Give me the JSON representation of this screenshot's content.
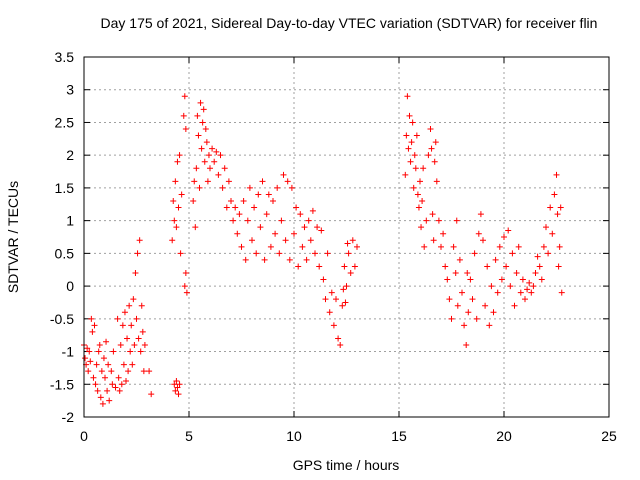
{
  "chart_data": {
    "type": "scatter",
    "title": "Day 175 of 2021, Sidereal Day-to-day VTEC variation (SDTVAR) for receiver flin",
    "xlabel": "GPS time / hours",
    "ylabel": "SDTVAR / TECUs",
    "xlim": [
      0,
      25
    ],
    "ylim": [
      -2,
      3.5
    ],
    "xticks": [
      0,
      5,
      10,
      15,
      20,
      25
    ],
    "yticks": [
      -2,
      -1.5,
      -1,
      -0.5,
      0,
      0.5,
      1,
      1.5,
      2,
      2.5,
      3,
      3.5
    ],
    "grid": true,
    "marker": "+",
    "series": [
      {
        "name": "SDTVAR",
        "color": "#ff0000",
        "points": [
          [
            0.0,
            -0.9
          ],
          [
            0.05,
            -1.1
          ],
          [
            0.1,
            -1.2
          ],
          [
            0.15,
            -0.95
          ],
          [
            0.2,
            -1.3
          ],
          [
            0.25,
            -1.0
          ],
          [
            0.3,
            -1.15
          ],
          [
            0.35,
            -0.5
          ],
          [
            0.4,
            -0.7
          ],
          [
            0.45,
            -1.4
          ],
          [
            0.5,
            -0.6
          ],
          [
            0.55,
            -1.5
          ],
          [
            0.6,
            -1.2
          ],
          [
            0.65,
            -1.6
          ],
          [
            0.7,
            -1.0
          ],
          [
            0.75,
            -0.9
          ],
          [
            0.8,
            -1.7
          ],
          [
            0.85,
            -1.3
          ],
          [
            0.9,
            -1.8
          ],
          [
            0.95,
            -1.1
          ],
          [
            1.0,
            -1.4
          ],
          [
            1.05,
            -0.85
          ],
          [
            1.1,
            -1.6
          ],
          [
            1.15,
            -1.2
          ],
          [
            1.2,
            -1.75
          ],
          [
            1.3,
            -1.3
          ],
          [
            1.35,
            -1.5
          ],
          [
            1.4,
            -1.0
          ],
          [
            1.5,
            -1.55
          ],
          [
            1.6,
            -0.5
          ],
          [
            1.65,
            -1.4
          ],
          [
            1.7,
            -1.6
          ],
          [
            1.75,
            -0.9
          ],
          [
            1.8,
            -1.5
          ],
          [
            1.85,
            -0.6
          ],
          [
            1.9,
            -1.2
          ],
          [
            1.95,
            -0.4
          ],
          [
            2.0,
            -1.45
          ],
          [
            2.05,
            -0.8
          ],
          [
            2.1,
            -1.3
          ],
          [
            2.15,
            -0.3
          ],
          [
            2.2,
            -1.0
          ],
          [
            2.25,
            -0.6
          ],
          [
            2.3,
            -1.2
          ],
          [
            2.35,
            -0.2
          ],
          [
            2.4,
            -0.9
          ],
          [
            2.45,
            0.2
          ],
          [
            2.5,
            -0.5
          ],
          [
            2.55,
            0.5
          ],
          [
            2.6,
            -0.8
          ],
          [
            2.65,
            0.7
          ],
          [
            2.7,
            -1.0
          ],
          [
            2.75,
            -0.3
          ],
          [
            2.8,
            -0.7
          ],
          [
            2.85,
            -1.3
          ],
          [
            2.9,
            -0.9
          ],
          [
            3.1,
            -1.3
          ],
          [
            3.2,
            -1.65
          ],
          [
            4.2,
            0.7
          ],
          [
            4.25,
            1.3
          ],
          [
            4.3,
            1.0
          ],
          [
            4.35,
            1.6
          ],
          [
            4.4,
            0.9
          ],
          [
            4.45,
            1.9
          ],
          [
            4.5,
            1.2
          ],
          [
            4.55,
            2.0
          ],
          [
            4.6,
            0.5
          ],
          [
            4.65,
            1.4
          ],
          [
            4.3,
            -1.5
          ],
          [
            4.35,
            -1.6
          ],
          [
            4.4,
            -1.45
          ],
          [
            4.45,
            -1.55
          ],
          [
            4.5,
            -1.65
          ],
          [
            4.55,
            -1.5
          ],
          [
            4.8,
            0.0
          ],
          [
            4.85,
            0.2
          ],
          [
            4.9,
            -0.1
          ],
          [
            4.75,
            2.6
          ],
          [
            4.8,
            2.9
          ],
          [
            4.85,
            2.4
          ],
          [
            5.2,
            1.3
          ],
          [
            5.25,
            1.6
          ],
          [
            5.3,
            0.9
          ],
          [
            5.35,
            1.8
          ],
          [
            5.4,
            2.6
          ],
          [
            5.45,
            2.3
          ],
          [
            5.5,
            1.5
          ],
          [
            5.55,
            2.8
          ],
          [
            5.6,
            2.1
          ],
          [
            5.65,
            2.5
          ],
          [
            5.7,
            2.7
          ],
          [
            5.75,
            1.9
          ],
          [
            5.8,
            2.4
          ],
          [
            5.85,
            2.2
          ],
          [
            5.9,
            1.6
          ],
          [
            5.95,
            2.0
          ],
          [
            6.0,
            1.8
          ],
          [
            6.1,
            2.1
          ],
          [
            6.2,
            1.9
          ],
          [
            6.3,
            2.05
          ],
          [
            6.4,
            1.7
          ],
          [
            6.5,
            2.0
          ],
          [
            6.6,
            1.5
          ],
          [
            6.7,
            1.8
          ],
          [
            6.8,
            1.2
          ],
          [
            6.9,
            1.6
          ],
          [
            7.0,
            1.3
          ],
          [
            7.1,
            1.0
          ],
          [
            7.2,
            1.2
          ],
          [
            7.3,
            0.8
          ],
          [
            7.4,
            1.1
          ],
          [
            7.5,
            0.6
          ],
          [
            7.6,
            1.3
          ],
          [
            7.7,
            0.4
          ],
          [
            7.8,
            1.0
          ],
          [
            7.9,
            1.5
          ],
          [
            8.0,
            0.7
          ],
          [
            8.1,
            1.2
          ],
          [
            8.2,
            0.5
          ],
          [
            8.3,
            1.4
          ],
          [
            8.4,
            0.9
          ],
          [
            8.5,
            1.6
          ],
          [
            8.6,
            0.4
          ],
          [
            8.7,
            1.1
          ],
          [
            8.8,
            1.4
          ],
          [
            8.9,
            0.6
          ],
          [
            9.0,
            1.3
          ],
          [
            9.1,
            0.8
          ],
          [
            9.2,
            1.5
          ],
          [
            9.3,
            0.5
          ],
          [
            9.4,
            1.0
          ],
          [
            9.5,
            1.7
          ],
          [
            9.6,
            0.7
          ],
          [
            9.7,
            1.6
          ],
          [
            9.8,
            0.4
          ],
          [
            9.9,
            1.5
          ],
          [
            10.0,
            0.8
          ],
          [
            10.1,
            1.2
          ],
          [
            10.2,
            0.3
          ],
          [
            10.3,
            1.1
          ],
          [
            10.4,
            0.6
          ],
          [
            10.5,
            0.9
          ],
          [
            10.6,
            0.4
          ],
          [
            10.7,
            1.0
          ],
          [
            10.8,
            0.7
          ],
          [
            10.9,
            1.15
          ],
          [
            11.0,
            0.5
          ],
          [
            11.1,
            0.9
          ],
          [
            11.2,
            0.3
          ],
          [
            11.3,
            0.85
          ],
          [
            11.4,
            0.1
          ],
          [
            11.5,
            -0.2
          ],
          [
            11.6,
            0.5
          ],
          [
            11.7,
            -0.4
          ],
          [
            11.8,
            -0.1
          ],
          [
            11.9,
            -0.6
          ],
          [
            12.0,
            -0.2
          ],
          [
            12.1,
            -0.8
          ],
          [
            12.2,
            -0.9
          ],
          [
            12.3,
            -0.3
          ],
          [
            12.4,
            0.3
          ],
          [
            12.5,
            0.0
          ],
          [
            12.6,
            0.5
          ],
          [
            12.7,
            0.2
          ],
          [
            12.8,
            0.7
          ],
          [
            12.9,
            0.3
          ],
          [
            13.0,
            0.6
          ],
          [
            12.35,
            -0.05
          ],
          [
            12.45,
            -0.25
          ],
          [
            12.55,
            0.65
          ],
          [
            15.3,
            1.7
          ],
          [
            15.35,
            2.3
          ],
          [
            15.4,
            2.9
          ],
          [
            15.45,
            2.1
          ],
          [
            15.5,
            2.6
          ],
          [
            15.55,
            1.9
          ],
          [
            15.6,
            2.2
          ],
          [
            15.65,
            2.5
          ],
          [
            15.7,
            1.5
          ],
          [
            15.75,
            2.0
          ],
          [
            15.8,
            1.8
          ],
          [
            15.85,
            2.3
          ],
          [
            15.9,
            1.4
          ],
          [
            15.95,
            1.2
          ],
          [
            16.0,
            1.6
          ],
          [
            16.05,
            0.9
          ],
          [
            16.1,
            1.3
          ],
          [
            16.15,
            1.8
          ],
          [
            16.2,
            0.6
          ],
          [
            16.3,
            1.0
          ],
          [
            16.4,
            2.0
          ],
          [
            16.5,
            2.4
          ],
          [
            16.55,
            2.1
          ],
          [
            16.6,
            1.1
          ],
          [
            16.65,
            0.7
          ],
          [
            16.7,
            1.9
          ],
          [
            16.75,
            2.2
          ],
          [
            16.8,
            1.6
          ],
          [
            16.9,
            1.0
          ],
          [
            17.0,
            0.6
          ],
          [
            17.1,
            0.8
          ],
          [
            17.2,
            0.3
          ],
          [
            17.3,
            0.1
          ],
          [
            17.4,
            -0.2
          ],
          [
            17.5,
            -0.5
          ],
          [
            17.6,
            0.6
          ],
          [
            17.7,
            0.2
          ],
          [
            17.75,
            1.0
          ],
          [
            17.8,
            -0.3
          ],
          [
            17.9,
            0.4
          ],
          [
            18.0,
            -0.1
          ],
          [
            18.1,
            -0.6
          ],
          [
            18.2,
            -0.9
          ],
          [
            18.25,
            0.2
          ],
          [
            18.3,
            -0.4
          ],
          [
            18.4,
            0.1
          ],
          [
            18.5,
            -0.2
          ],
          [
            18.6,
            0.5
          ],
          [
            18.7,
            -0.5
          ],
          [
            18.8,
            0.8
          ],
          [
            18.9,
            1.1
          ],
          [
            19.0,
            0.7
          ],
          [
            19.1,
            -0.3
          ],
          [
            19.2,
            0.3
          ],
          [
            19.3,
            -0.6
          ],
          [
            19.4,
            0.0
          ],
          [
            19.5,
            -0.4
          ],
          [
            19.6,
            0.4
          ],
          [
            19.7,
            -0.1
          ],
          [
            19.8,
            0.6
          ],
          [
            19.9,
            0.1
          ],
          [
            20.0,
            0.75
          ],
          [
            20.1,
            0.3
          ],
          [
            20.2,
            0.85
          ],
          [
            20.3,
            0.0
          ],
          [
            20.4,
            0.5
          ],
          [
            20.5,
            -0.3
          ],
          [
            20.6,
            0.2
          ],
          [
            20.7,
            0.6
          ],
          [
            20.8,
            -0.1
          ],
          [
            20.9,
            0.1
          ],
          [
            21.0,
            -0.2
          ],
          [
            21.1,
            -0.05
          ],
          [
            21.2,
            0.05
          ],
          [
            21.3,
            -0.1
          ],
          [
            21.4,
            0.0
          ],
          [
            21.5,
            0.2
          ],
          [
            21.6,
            0.45
          ],
          [
            21.7,
            0.3
          ],
          [
            21.8,
            0.1
          ],
          [
            21.9,
            0.6
          ],
          [
            22.0,
            0.9
          ],
          [
            22.1,
            0.5
          ],
          [
            22.2,
            1.2
          ],
          [
            22.3,
            0.8
          ],
          [
            22.4,
            1.4
          ],
          [
            22.5,
            1.7
          ],
          [
            22.55,
            1.1
          ],
          [
            22.6,
            0.3
          ],
          [
            22.65,
            0.6
          ],
          [
            22.7,
            1.2
          ],
          [
            22.75,
            -0.1
          ]
        ]
      }
    ]
  }
}
